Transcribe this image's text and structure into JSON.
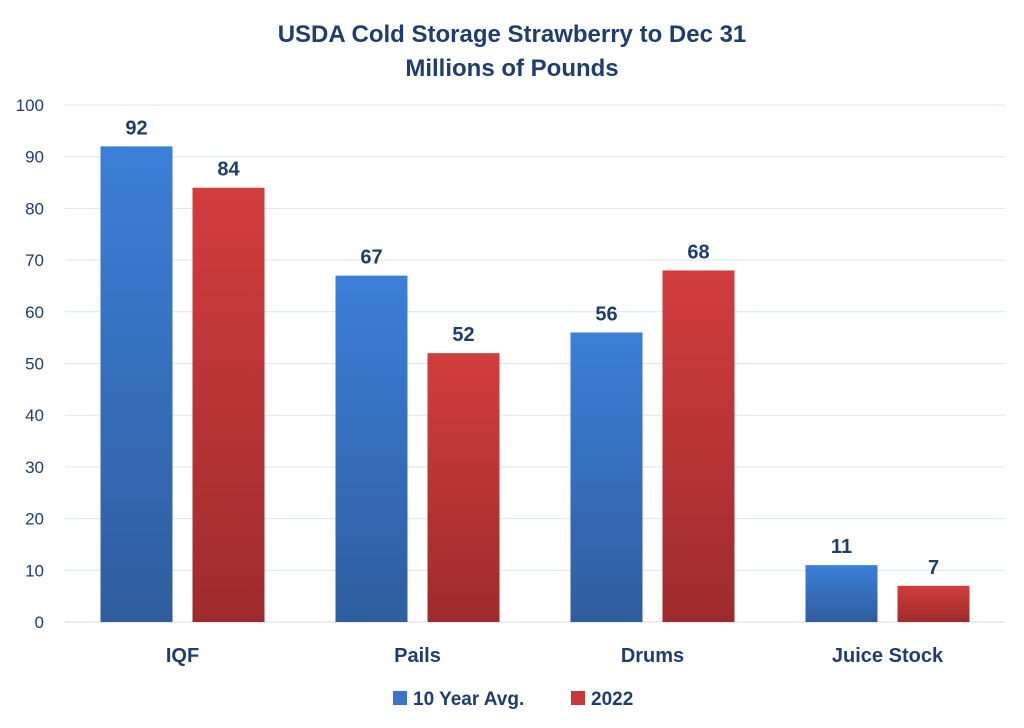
{
  "chart_data": {
    "type": "bar",
    "title": "USDA Cold Storage Strawberry to Dec 31",
    "subtitle": "Millions of Pounds",
    "categories": [
      "IQF",
      "Pails",
      "Drums",
      "Juice Stock"
    ],
    "series": [
      {
        "name": "10 Year Avg.",
        "values": [
          92,
          67,
          56,
          11
        ],
        "color": "#3a74c4"
      },
      {
        "name": "2022",
        "values": [
          84,
          52,
          68,
          7
        ],
        "color": "#c8373a"
      }
    ],
    "ylim": [
      0,
      100
    ],
    "yticks": [
      "0",
      "10",
      "20",
      "30",
      "40",
      "50",
      "60",
      "70",
      "80",
      "90",
      "100"
    ],
    "grid": true,
    "data_labels": true,
    "legend_position": "bottom"
  }
}
